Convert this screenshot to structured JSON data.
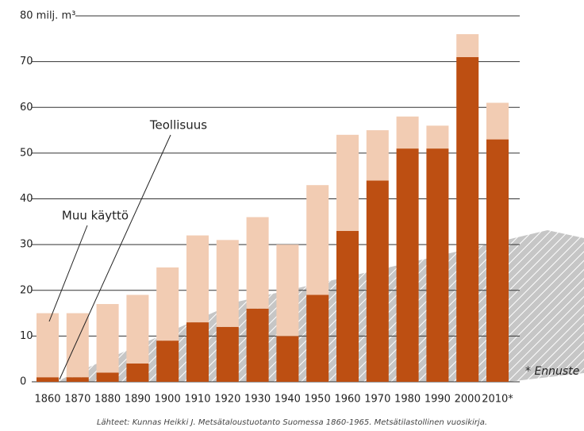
{
  "chart_data": {
    "type": "bar",
    "stacked": true,
    "categories": [
      "1860",
      "1870",
      "1880",
      "1890",
      "1900",
      "1910",
      "1920",
      "1930",
      "1940",
      "1950",
      "1960",
      "1970",
      "1980",
      "1990",
      "2000",
      "2010*"
    ],
    "series": [
      {
        "name": "Teollisuus",
        "color": "#bd4f12",
        "values": [
          1,
          1,
          2,
          4,
          9,
          13,
          12,
          16,
          10,
          19,
          33,
          44,
          51,
          51,
          71,
          53
        ]
      },
      {
        "name": "Muu käyttö",
        "color": "#f2ccb3",
        "values": [
          14,
          14,
          15,
          15,
          16,
          19,
          19,
          20,
          20,
          24,
          21,
          11,
          7,
          5,
          5,
          8
        ]
      }
    ],
    "ylim": [
      0,
      80
    ],
    "yticks": [
      0,
      10,
      20,
      30,
      40,
      50,
      60,
      70,
      {
        "value": 80,
        "label": "80 milj. m³"
      }
    ],
    "grid": true,
    "note": "* Ennuste",
    "source": "Lähteet: Kunnas Heikki J. Metsätaloustuotanto Suomessa 1860-1965. Metsätilastollinen vuosikirja."
  }
}
